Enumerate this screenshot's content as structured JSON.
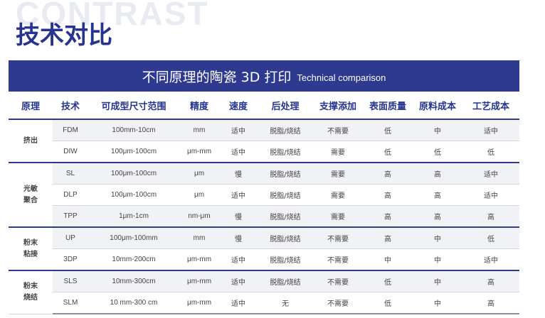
{
  "watermark": "CONTRAST",
  "page_title": "技术对比",
  "banner": {
    "title": "不同原理的陶瓷 3D 打印",
    "subtitle": "Technical comparison"
  },
  "table": {
    "headers": [
      "原理",
      "技术",
      "可成型尺寸范围",
      "精度",
      "速度",
      "后处理",
      "支撑添加",
      "表面质量",
      "原料成本",
      "工艺成本"
    ],
    "groups": [
      {
        "label": "挤出",
        "rows": [
          [
            "FDM",
            "100mm-10cm",
            "mm",
            "适中",
            "脱脂/烧结",
            "不需要",
            "低",
            "中",
            "适中"
          ],
          [
            "DIW",
            "100μm-100cm",
            "μm-mm",
            "适中",
            "脱脂/烧结",
            "需要",
            "低",
            "低",
            "低"
          ]
        ]
      },
      {
        "label": "光敏\n聚合",
        "rows": [
          [
            "SL",
            "100μm-100cm",
            "μm",
            "慢",
            "脱脂/烧结",
            "需要",
            "高",
            "高",
            "适中"
          ],
          [
            "DLP",
            "100μm-100cm",
            "μm",
            "适中",
            "脱脂/烧结",
            "需要",
            "高",
            "高",
            "适中"
          ],
          [
            "TPP",
            "1μm-1cm",
            "nm-μm",
            "慢",
            "脱脂/烧结",
            "需要",
            "高",
            "高",
            "高"
          ]
        ]
      },
      {
        "label": "粉末\n粘接",
        "rows": [
          [
            "UP",
            "100μm-100mm",
            "mm",
            "慢",
            "脱脂/烧结",
            "不需要",
            "高",
            "中",
            "低"
          ],
          [
            "3DP",
            "10mm-200cm",
            "μm-mm",
            "适中",
            "脱脂/烧结",
            "不需要",
            "中",
            "中",
            "适中"
          ]
        ]
      },
      {
        "label": "粉末\n烧结",
        "rows": [
          [
            "SLS",
            "10mm-300cm",
            "μm-mm",
            "适中",
            "脱脂/烧结",
            "不需要",
            "低",
            "中",
            "高"
          ],
          [
            "SLM",
            "10 mm-300 cm",
            "μm-mm",
            "适中",
            "无",
            "不需要",
            "低",
            "中",
            "高"
          ]
        ]
      }
    ]
  }
}
